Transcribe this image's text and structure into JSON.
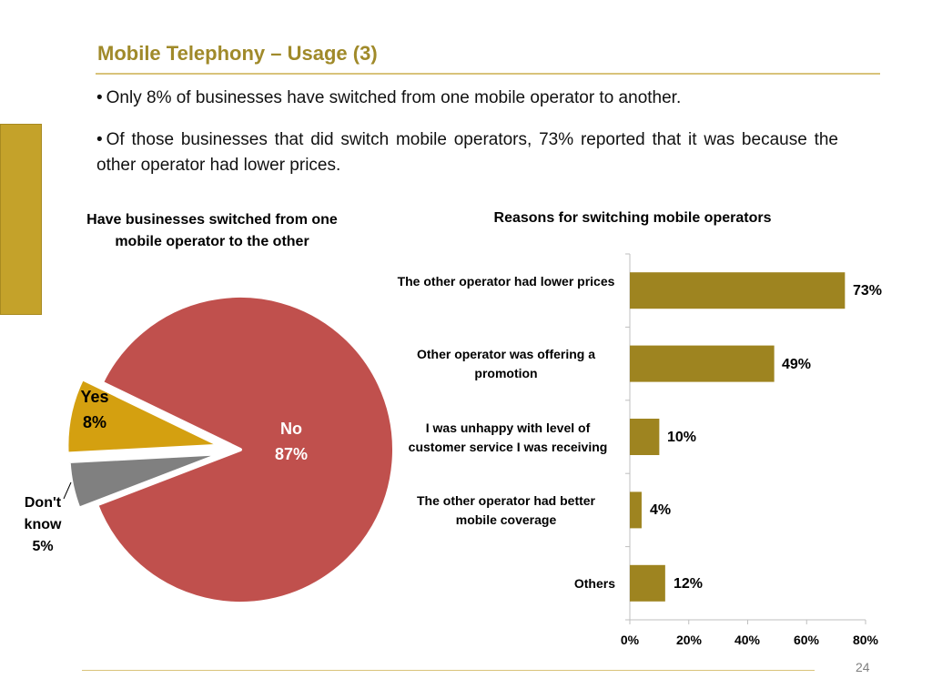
{
  "slide": {
    "title": "Mobile Telephony – Usage (3)",
    "bullets": [
      "Only 8% of businesses have switched from one mobile operator to another.",
      "Of those businesses that did switch mobile operators, 73% reported that it was because the other operator had lower prices."
    ],
    "page_number": "24"
  },
  "colors": {
    "accent": "#9e8420",
    "title": "#a08a2a",
    "side_bar": "#c4a22a",
    "side_bar_border": "#a88a20",
    "pie_no": "#c0504d",
    "pie_yes": "#d4a010",
    "pie_dont_know": "#808080",
    "bar_fill": "#9e8420",
    "rule": "#d9c37a"
  },
  "chart_data": [
    {
      "type": "pie",
      "title": "Have businesses switched from one mobile operator  to the other",
      "slices": [
        {
          "name": "No",
          "value": 87,
          "value_label": "87%",
          "color": "#c0504d"
        },
        {
          "name": "Yes",
          "value": 8,
          "value_label": "8%",
          "color": "#d4a010",
          "exploded": true
        },
        {
          "name": "Don't know",
          "value": 5,
          "value_label": "5%",
          "color": "#808080",
          "exploded": true
        }
      ]
    },
    {
      "type": "bar",
      "orientation": "horizontal",
      "title": "Reasons for switching mobile operators",
      "categories": [
        "The other operator had lower prices",
        "Other operator was offering a promotion",
        "I was unhappy with  level of customer service I was receiving",
        "The other operator had better mobile coverage",
        "Others"
      ],
      "values": [
        73,
        49,
        10,
        4,
        12
      ],
      "value_labels": [
        "73%",
        "49%",
        "10%",
        "4%",
        "12%"
      ],
      "xlim": [
        0,
        80
      ],
      "xticks": [
        "0%",
        "20%",
        "40%",
        "60%",
        "80%"
      ],
      "grid": false
    }
  ]
}
